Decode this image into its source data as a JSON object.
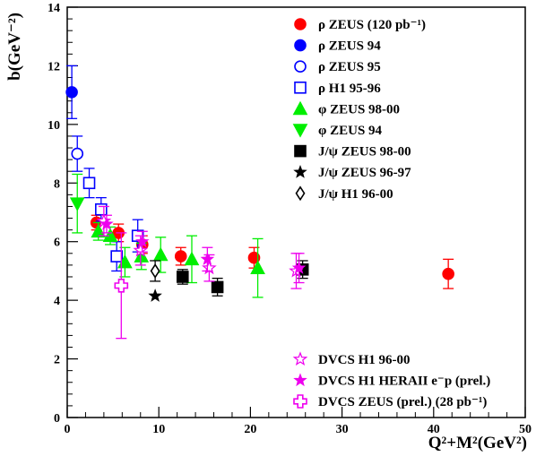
{
  "chart_data": {
    "type": "scatter",
    "title": "",
    "xlabel": "Q²+M²(GeV²)",
    "ylabel": "b(GeV⁻²)",
    "xlim": [
      0,
      50
    ],
    "ylim": [
      0,
      14
    ],
    "x_ticks": [
      0,
      10,
      20,
      30,
      40,
      50
    ],
    "y_ticks": [
      0,
      2,
      4,
      6,
      8,
      10,
      12,
      14
    ],
    "grid": false,
    "legend_placement": "top-right and bottom-right",
    "series": [
      {
        "name": "ρ ZEUS (120 pb⁻¹)",
        "marker": "circle",
        "filled": true,
        "color": "#ff0000",
        "legend_group": "top",
        "points": [
          {
            "x": 3.2,
            "y": 6.65,
            "err_lo": 0.25,
            "err_hi": 0.25
          },
          {
            "x": 5.6,
            "y": 6.3,
            "err_lo": 0.3,
            "err_hi": 0.3
          },
          {
            "x": 8.2,
            "y": 5.9,
            "err_lo": 0.3,
            "err_hi": 0.3
          },
          {
            "x": 12.4,
            "y": 5.5,
            "err_lo": 0.3,
            "err_hi": 0.3
          },
          {
            "x": 20.4,
            "y": 5.45,
            "err_lo": 0.35,
            "err_hi": 0.35
          },
          {
            "x": 41.6,
            "y": 4.9,
            "err_lo": 0.5,
            "err_hi": 0.5
          }
        ]
      },
      {
        "name": "ρ ZEUS 94",
        "marker": "circle",
        "filled": true,
        "color": "#0000ff",
        "legend_group": "top",
        "points": [
          {
            "x": 0.5,
            "y": 11.1,
            "err_lo": 0.9,
            "err_hi": 0.9
          }
        ]
      },
      {
        "name": "ρ ZEUS 95",
        "marker": "circle",
        "filled": false,
        "color": "#0000ff",
        "legend_group": "top",
        "points": [
          {
            "x": 1.1,
            "y": 9.0,
            "err_lo": 0.6,
            "err_hi": 0.6
          }
        ]
      },
      {
        "name": "ρ H1 95-96",
        "marker": "square",
        "filled": false,
        "color": "#0000ff",
        "legend_group": "top",
        "points": [
          {
            "x": 2.4,
            "y": 8.0,
            "err_lo": 0.5,
            "err_hi": 0.5
          },
          {
            "x": 3.7,
            "y": 7.1,
            "err_lo": 0.4,
            "err_hi": 0.4
          },
          {
            "x": 5.4,
            "y": 5.5,
            "err_lo": 0.5,
            "err_hi": 0.5
          },
          {
            "x": 7.7,
            "y": 6.2,
            "err_lo": 0.55,
            "err_hi": 0.55
          }
        ]
      },
      {
        "name": "φ ZEUS 98-00",
        "marker": "triangle-up",
        "filled": true,
        "color": "#00ee00",
        "legend_group": "top",
        "points": [
          {
            "x": 3.4,
            "y": 6.35,
            "err_lo": 0.3,
            "err_hi": 0.3
          },
          {
            "x": 4.7,
            "y": 6.2,
            "err_lo": 0.3,
            "err_hi": 0.3
          },
          {
            "x": 6.3,
            "y": 5.3,
            "err_lo": 0.5,
            "err_hi": 0.5
          },
          {
            "x": 8.1,
            "y": 5.5,
            "err_lo": 0.45,
            "err_hi": 0.45
          },
          {
            "x": 10.2,
            "y": 5.55,
            "err_lo": 0.6,
            "err_hi": 0.6
          },
          {
            "x": 13.6,
            "y": 5.4,
            "err_lo": 0.8,
            "err_hi": 0.8
          },
          {
            "x": 20.8,
            "y": 5.1,
            "err_lo": 1.0,
            "err_hi": 1.0
          }
        ]
      },
      {
        "name": "φ ZEUS 94",
        "marker": "triangle-down",
        "filled": true,
        "color": "#00ee00",
        "legend_group": "top",
        "points": [
          {
            "x": 1.1,
            "y": 7.3,
            "err_lo": 1.0,
            "err_hi": 1.0
          }
        ]
      },
      {
        "name": "J/ψ ZEUS 98-00",
        "marker": "square",
        "filled": true,
        "color": "#000000",
        "legend_group": "top",
        "points": [
          {
            "x": 12.6,
            "y": 4.8,
            "err_lo": 0.25,
            "err_hi": 0.25
          },
          {
            "x": 16.4,
            "y": 4.45,
            "err_lo": 0.3,
            "err_hi": 0.3
          },
          {
            "x": 25.7,
            "y": 5.05,
            "err_lo": 0.3,
            "err_hi": 0.3
          }
        ]
      },
      {
        "name": "J/ψ ZEUS 96-97",
        "marker": "star",
        "filled": true,
        "color": "#000000",
        "legend_group": "top",
        "points": [
          {
            "x": 9.6,
            "y": 4.15,
            "err_lo": 0.0,
            "err_hi": 0.0
          }
        ]
      },
      {
        "name": "J/ψ H1 96-00",
        "marker": "diamond",
        "filled": false,
        "color": "#000000",
        "legend_group": "top",
        "points": [
          {
            "x": 9.6,
            "y": 5.0,
            "err_lo": 0.35,
            "err_hi": 0.35
          }
        ]
      },
      {
        "name": "DVCS H1 96-00",
        "marker": "star",
        "filled": false,
        "color": "#ee00ee",
        "legend_group": "bottom",
        "points": [
          {
            "x": 4.0,
            "y": 6.7,
            "err_lo": 0.5,
            "err_hi": 0.5
          },
          {
            "x": 8.0,
            "y": 5.7,
            "err_lo": 0.5,
            "err_hi": 0.5
          },
          {
            "x": 15.5,
            "y": 5.1,
            "err_lo": 0.45,
            "err_hi": 0.45
          },
          {
            "x": 25.0,
            "y": 5.0,
            "err_lo": 0.6,
            "err_hi": 0.6
          }
        ]
      },
      {
        "name": "DVCS H1 HERAII e⁻p (prel.)",
        "marker": "star",
        "filled": true,
        "color": "#ee00ee",
        "legend_group": "bottom",
        "points": [
          {
            "x": 4.3,
            "y": 6.6,
            "err_lo": 0.3,
            "err_hi": 0.3
          },
          {
            "x": 8.2,
            "y": 6.0,
            "err_lo": 0.35,
            "err_hi": 0.35
          },
          {
            "x": 15.3,
            "y": 5.4,
            "err_lo": 0.4,
            "err_hi": 0.4
          },
          {
            "x": 25.3,
            "y": 5.1,
            "err_lo": 0.5,
            "err_hi": 0.5
          }
        ]
      },
      {
        "name": "DVCS ZEUS (prel.) (28 pb⁻¹)",
        "marker": "cross-open",
        "filled": false,
        "color": "#ee00ee",
        "legend_group": "bottom",
        "points": [
          {
            "x": 5.9,
            "y": 4.5,
            "err_lo": 1.8,
            "err_hi": 1.8
          }
        ]
      }
    ]
  }
}
